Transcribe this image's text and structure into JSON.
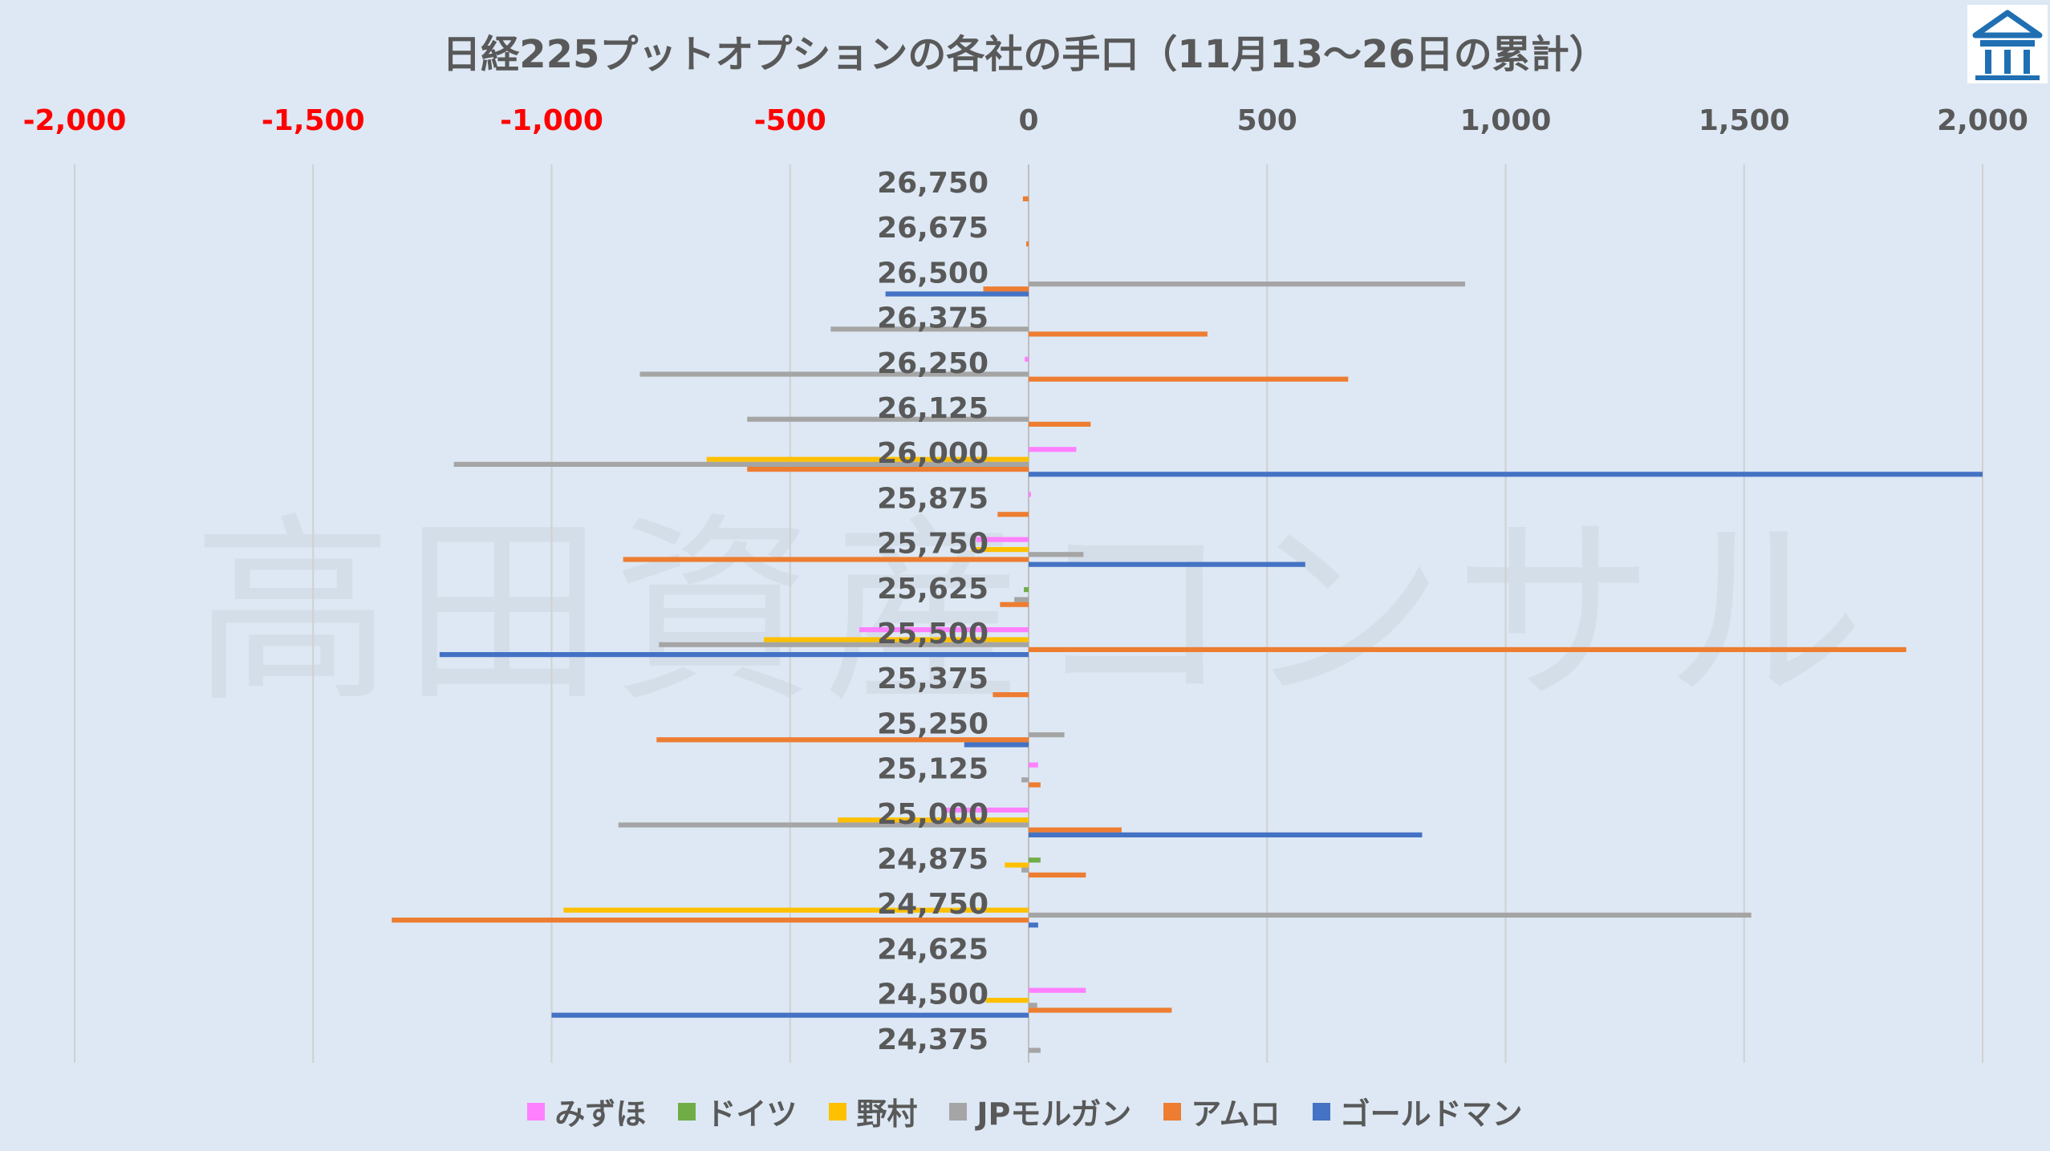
{
  "chart_data": {
    "type": "bar",
    "orientation": "horizontal",
    "title": "日経225プットオプションの各社の手口（11月13～26日の累計）",
    "xlim": [
      -2000,
      2000
    ],
    "x_ticks": [
      {
        "value": -2000,
        "label": "-2,000"
      },
      {
        "value": -1500,
        "label": "-1,500"
      },
      {
        "value": -1000,
        "label": "-1,000"
      },
      {
        "value": -500,
        "label": "-500"
      },
      {
        "value": 0,
        "label": "0"
      },
      {
        "value": 500,
        "label": "500"
      },
      {
        "value": 1000,
        "label": "1,000"
      },
      {
        "value": 1500,
        "label": "1,500"
      },
      {
        "value": 2000,
        "label": "2,000"
      }
    ],
    "negative_tick_color": "#ff0000",
    "tick_color": "#595959",
    "axis_position": "top",
    "grid": true,
    "legend_position": "bottom",
    "categories": [
      "26,750",
      "26,675",
      "26,500",
      "26,375",
      "26,250",
      "26,125",
      "26,000",
      "25,875",
      "25,750",
      "25,625",
      "25,500",
      "25,375",
      "25,250",
      "25,125",
      "25,000",
      "24,875",
      "24,750",
      "24,625",
      "24,500",
      "24,375"
    ],
    "series": [
      {
        "name": "みずほ",
        "color": "#ff80ff",
        "values": [
          0,
          0,
          0,
          0,
          -8,
          0,
          100,
          5,
          -110,
          0,
          -355,
          0,
          0,
          20,
          -180,
          0,
          0,
          0,
          120,
          0
        ]
      },
      {
        "name": "ドイツ",
        "color": "#70ad47",
        "values": [
          0,
          0,
          0,
          0,
          0,
          0,
          0,
          0,
          0,
          -10,
          0,
          0,
          0,
          0,
          0,
          25,
          0,
          0,
          0,
          0
        ]
      },
      {
        "name": "野村",
        "color": "#ffc000",
        "values": [
          0,
          0,
          0,
          0,
          0,
          0,
          -675,
          0,
          -120,
          0,
          -555,
          0,
          0,
          0,
          -400,
          -50,
          -975,
          0,
          -90,
          0
        ]
      },
      {
        "name": "JPモルガン",
        "color": "#a5a5a5",
        "values": [
          0,
          0,
          915,
          -415,
          -815,
          -590,
          -1205,
          0,
          115,
          -30,
          -775,
          0,
          75,
          -15,
          -860,
          -15,
          1515,
          0,
          18,
          25
        ]
      },
      {
        "name": "アムロ",
        "color": "#ed7d31",
        "values": [
          -12,
          -5,
          -95,
          375,
          670,
          130,
          -590,
          -65,
          -850,
          -60,
          1840,
          -75,
          -780,
          25,
          195,
          120,
          -1335,
          0,
          300,
          0
        ]
      },
      {
        "name": "ゴールドマン",
        "color": "#4472c4",
        "values": [
          0,
          0,
          -300,
          0,
          0,
          0,
          2000,
          0,
          580,
          0,
          -1235,
          0,
          -135,
          0,
          825,
          0,
          20,
          0,
          -1000,
          0
        ]
      }
    ]
  },
  "watermark": "高田資産コンサル",
  "colors": {
    "background": "#dde8f4",
    "gridline": "#d0d0d0",
    "text": "#595959"
  },
  "logo": {
    "icon": "building-logo-icon",
    "color": "#1f6fb2"
  }
}
